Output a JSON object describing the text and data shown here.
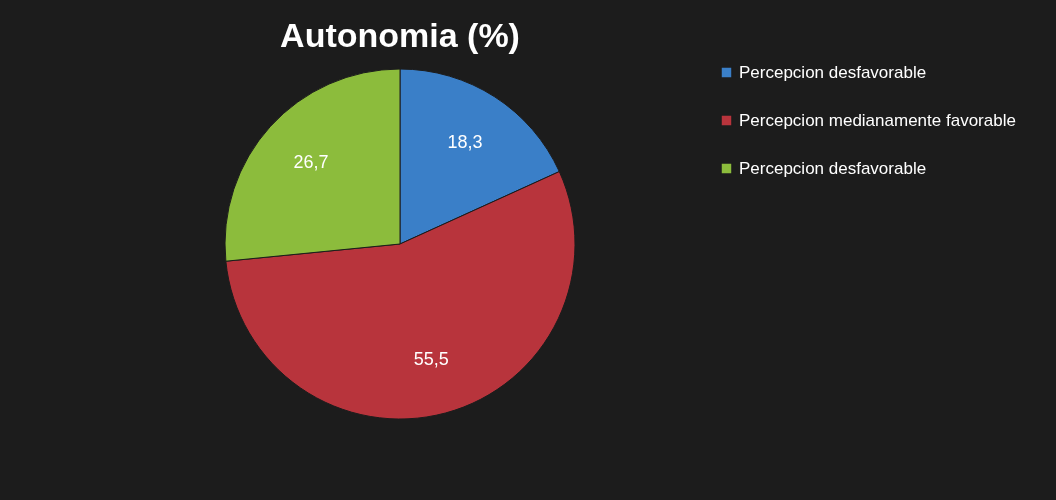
{
  "chart_data": {
    "type": "pie",
    "title": "Autonomia (%)",
    "categories": [
      "Percepcion desfavorable",
      "Percepcion medianamente favorable",
      "Percepcion desfavorable"
    ],
    "values": [
      18.3,
      55.5,
      26.7
    ],
    "value_labels": [
      "18,3",
      "55,5",
      "26,7"
    ],
    "colors": [
      "#3a7fc8",
      "#b8343c",
      "#8cbc3c"
    ],
    "legend": "right"
  }
}
